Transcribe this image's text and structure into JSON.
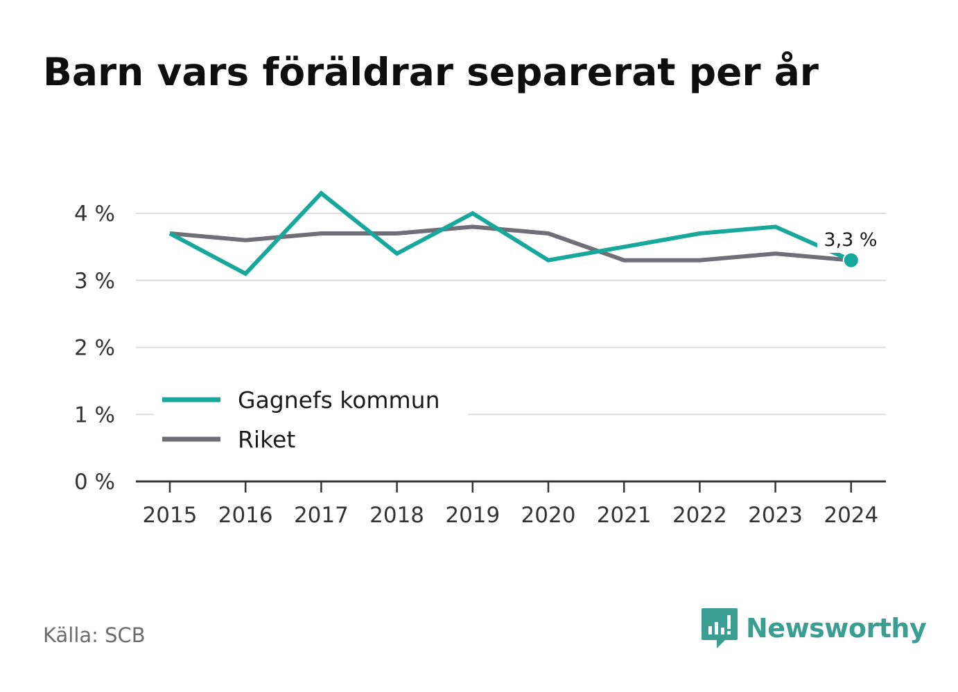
{
  "title": "Barn vars föräldrar separerat per år",
  "source": "Källa: SCB",
  "brand": {
    "name": "Newsworthy",
    "icon": "newsworthy-logo-icon"
  },
  "colors": {
    "gagnef": "#17a89b",
    "riket": "#706f78",
    "grid": "#dddddd",
    "axis": "#333333"
  },
  "chart_data": {
    "type": "line",
    "title": "Barn vars föräldrar separerat per år",
    "x": [
      "2015",
      "2016",
      "2017",
      "2018",
      "2019",
      "2020",
      "2021",
      "2022",
      "2023",
      "2024"
    ],
    "series": [
      {
        "name": "Gagnefs kommun",
        "values": [
          3.7,
          3.1,
          4.3,
          3.4,
          4.0,
          3.3,
          3.5,
          3.7,
          3.8,
          3.3
        ]
      },
      {
        "name": "Riket",
        "values": [
          3.7,
          3.6,
          3.7,
          3.7,
          3.8,
          3.7,
          3.3,
          3.3,
          3.4,
          3.3
        ]
      }
    ],
    "y_ticks": [
      0,
      1,
      2,
      3,
      4
    ],
    "y_tick_labels": [
      "0 %",
      "1 %",
      "2 %",
      "3 %",
      "4 %"
    ],
    "ylim": [
      0,
      4.4
    ],
    "grid": true,
    "legend_position": "bottom-left",
    "end_label": "3,3 %",
    "xlabel": "",
    "ylabel": ""
  }
}
